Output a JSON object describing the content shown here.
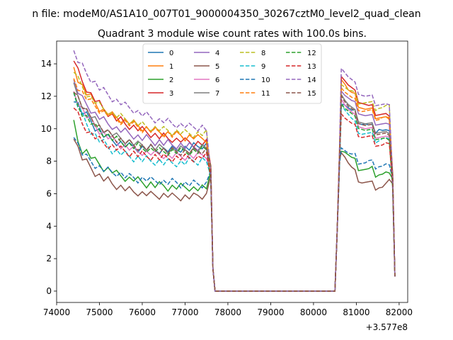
{
  "suptitle": "n file: modeM0/AS1A10_007T01_9000004350_30267cztM0_level2_quad_clean",
  "chart_data": {
    "type": "line",
    "title": "Quadrant 3 module wise count rates with 100.0s bins.",
    "xlabel": "",
    "ylabel": "",
    "x_offset_label": "+3.577e8",
    "xlim": [
      74000,
      82200
    ],
    "ylim": [
      -0.7,
      15.4
    ],
    "xticks": [
      74000,
      75000,
      76000,
      77000,
      78000,
      79000,
      80000,
      81000,
      82000
    ],
    "yticks": [
      0,
      2,
      4,
      6,
      8,
      10,
      12,
      14
    ],
    "grid": false,
    "legend_position": "top-center",
    "legend_columns": 4,
    "series": [
      {
        "name": "0",
        "color": "#1f77b4",
        "dash": "solid",
        "start": [
          11.9,
          11.5,
          11.0,
          10.8,
          10.5,
          10.1,
          9.9,
          9.6,
          9.4,
          9.3,
          9.2,
          9.1,
          9.0,
          8.9,
          8.9,
          8.8,
          8.8,
          8.8,
          8.8,
          8.7,
          8.7,
          8.7,
          8.7,
          8.7,
          8.7,
          8.8,
          8.8,
          8.8,
          8.9,
          8.9,
          9.0,
          9.0
        ],
        "end": [
          11.8,
          11.6,
          11.3,
          11.0,
          10.9,
          10.6,
          10.4,
          10.3,
          10.1,
          10.0,
          10.0,
          10.1,
          9.9,
          9.8,
          9.6
        ]
      },
      {
        "name": "1",
        "color": "#ff7f0e",
        "dash": "solid",
        "start": [
          13.8,
          13.1,
          12.6,
          12.2,
          11.9,
          11.6,
          11.3,
          11.1,
          11.0,
          10.8,
          10.7,
          10.6,
          10.5,
          10.4,
          10.3,
          10.2,
          10.1,
          10.0,
          9.9,
          9.9,
          9.8,
          9.8,
          9.7,
          9.7,
          9.6,
          9.6,
          9.5,
          9.5,
          9.5,
          9.4,
          9.4,
          9.4
        ],
        "end": [
          13.3,
          12.9,
          12.4,
          12.1,
          11.9,
          11.6,
          11.4,
          11.2,
          11.1,
          11.0,
          10.9,
          10.8,
          10.7,
          10.6,
          10.3
        ]
      },
      {
        "name": "2",
        "color": "#2ca02c",
        "dash": "solid",
        "start": [
          10.3,
          9.2,
          8.7,
          8.6,
          8.3,
          8.0,
          7.8,
          7.6,
          7.5,
          7.4,
          7.2,
          7.1,
          7.0,
          6.9,
          6.9,
          6.8,
          6.7,
          6.6,
          6.6,
          6.5,
          6.5,
          6.5,
          6.4,
          6.4,
          6.4,
          6.4,
          6.4,
          6.4,
          6.3,
          6.3,
          6.3,
          6.3
        ],
        "end": [
          8.9,
          8.7,
          8.4,
          8.1,
          7.9,
          7.7,
          7.6,
          7.5,
          7.4,
          7.4,
          7.3,
          7.3,
          7.2,
          7.2,
          7.0
        ]
      },
      {
        "name": "3",
        "color": "#d62728",
        "dash": "solid",
        "start": [
          14.3,
          13.5,
          12.9,
          12.5,
          12.1,
          11.8,
          11.5,
          11.2,
          11.0,
          10.8,
          10.6,
          10.5,
          10.3,
          10.2,
          10.1,
          10.0,
          9.9,
          9.8,
          9.7,
          9.6,
          9.5,
          9.5,
          9.4,
          9.4,
          9.3,
          9.3,
          9.2,
          9.2,
          9.1,
          9.1,
          9.1,
          9.1
        ],
        "end": [
          13.5,
          13.1,
          12.7,
          12.4,
          12.1,
          11.9,
          11.7,
          11.5,
          11.3,
          11.2,
          11.1,
          11.0,
          10.9,
          10.8,
          10.5
        ]
      },
      {
        "name": "4",
        "color": "#9467bd",
        "dash": "solid",
        "start": [
          12.9,
          12.3,
          11.8,
          11.5,
          11.2,
          10.9,
          10.7,
          10.5,
          10.3,
          10.2,
          10.0,
          9.9,
          9.8,
          9.7,
          9.6,
          9.5,
          9.4,
          9.4,
          9.3,
          9.2,
          9.2,
          9.1,
          9.1,
          9.0,
          9.0,
          9.0,
          8.9,
          8.9,
          8.9,
          8.9,
          8.9,
          8.9
        ],
        "end": [
          12.6,
          12.2,
          11.9,
          11.6,
          11.4,
          11.2,
          11.0,
          10.8,
          10.7,
          10.6,
          10.5,
          10.4,
          10.3,
          10.2,
          10.0
        ]
      },
      {
        "name": "5",
        "color": "#8c564b",
        "dash": "solid",
        "start": [
          9.6,
          8.8,
          8.2,
          7.9,
          7.6,
          7.3,
          7.1,
          6.9,
          6.8,
          6.6,
          6.5,
          6.4,
          6.3,
          6.2,
          6.1,
          6.1,
          6.0,
          6.0,
          5.9,
          5.9,
          5.9,
          5.9,
          5.9,
          5.8,
          5.8,
          5.8,
          5.8,
          5.8,
          5.8,
          5.9,
          5.9,
          5.9
        ],
        "end": [
          8.8,
          8.4,
          7.9,
          7.5,
          7.2,
          7.0,
          6.8,
          6.7,
          6.6,
          6.5,
          6.5,
          6.5,
          6.4,
          6.5,
          6.6
        ]
      },
      {
        "name": "6",
        "color": "#e377c2",
        "dash": "solid",
        "start": [
          12.3,
          11.7,
          11.2,
          10.8,
          10.5,
          10.2,
          9.9,
          9.7,
          9.5,
          9.3,
          9.2,
          9.0,
          8.9,
          8.8,
          8.7,
          8.6,
          8.6,
          8.5,
          8.5,
          8.4,
          8.4,
          8.4,
          8.3,
          8.3,
          8.3,
          8.3,
          8.3,
          8.3,
          8.3,
          8.3,
          8.4,
          8.4
        ],
        "end": [
          12.1,
          11.6,
          11.2,
          10.9,
          10.6,
          10.4,
          10.2,
          10.0,
          9.9,
          9.8,
          9.7,
          9.6,
          9.5,
          9.4,
          9.2
        ]
      },
      {
        "name": "7",
        "color": "#7f7f7f",
        "dash": "solid",
        "start": [
          12.6,
          12.0,
          11.5,
          11.1,
          10.8,
          10.5,
          10.2,
          10.0,
          9.8,
          9.7,
          9.5,
          9.4,
          9.3,
          9.2,
          9.1,
          9.0,
          9.0,
          8.9,
          8.9,
          8.8,
          8.8,
          8.8,
          8.7,
          8.7,
          8.7,
          8.7,
          8.7,
          8.7,
          8.7,
          8.7,
          8.8,
          8.8
        ],
        "end": [
          12.4,
          11.9,
          11.5,
          11.2,
          10.9,
          10.7,
          10.5,
          10.3,
          10.2,
          10.1,
          10.0,
          9.9,
          9.8,
          9.7,
          9.4
        ]
      },
      {
        "name": "8",
        "color": "#bcbd22",
        "dash": "dashed",
        "start": [
          13.6,
          13.0,
          12.6,
          12.2,
          11.9,
          11.7,
          11.4,
          11.2,
          11.1,
          10.9,
          10.8,
          10.7,
          10.6,
          10.5,
          10.4,
          10.3,
          10.2,
          10.1,
          10.1,
          10.0,
          10.0,
          9.9,
          9.9,
          9.8,
          9.8,
          9.8,
          9.7,
          9.7,
          9.7,
          9.7,
          9.7,
          9.7
        ],
        "end": [
          13.0,
          12.7,
          12.4,
          12.2,
          12.0,
          11.8,
          11.7,
          11.6,
          11.5,
          11.4,
          11.4,
          11.4,
          11.3,
          11.3,
          11.2
        ]
      },
      {
        "name": "9",
        "color": "#17becf",
        "dash": "dashed",
        "start": [
          12.1,
          11.4,
          10.8,
          10.3,
          9.9,
          9.6,
          9.3,
          9.1,
          8.9,
          8.7,
          8.6,
          8.5,
          8.4,
          8.3,
          8.2,
          8.2,
          8.1,
          8.1,
          8.0,
          8.0,
          8.0,
          7.9,
          7.9,
          7.9,
          7.9,
          7.9,
          7.9,
          8.0,
          8.0,
          8.0,
          8.1,
          8.1
        ],
        "end": [
          11.8,
          11.3,
          10.9,
          10.5,
          10.2,
          10.0,
          9.8,
          9.7,
          9.6,
          9.5,
          9.4,
          9.4,
          9.4,
          9.3,
          9.1
        ]
      },
      {
        "name": "10",
        "color": "#1f77b4",
        "dash": "dashed",
        "start": [
          9.7,
          9.0,
          8.5,
          8.2,
          8.0,
          7.8,
          7.6,
          7.5,
          7.4,
          7.3,
          7.3,
          7.2,
          7.1,
          7.0,
          7.0,
          6.9,
          6.9,
          6.9,
          6.8,
          6.8,
          6.8,
          6.7,
          6.7,
          6.7,
          6.7,
          6.6,
          6.6,
          6.6,
          6.6,
          6.6,
          6.6,
          6.6
        ],
        "end": [
          9.1,
          8.8,
          8.5,
          8.3,
          8.2,
          8.1,
          8.0,
          7.9,
          7.9,
          7.8,
          7.8,
          7.8,
          7.7,
          7.7,
          7.5
        ]
      },
      {
        "name": "11",
        "color": "#ff7f0e",
        "dash": "dashed",
        "start": [
          13.1,
          12.6,
          12.2,
          11.9,
          11.6,
          11.4,
          11.2,
          11.0,
          10.9,
          10.7,
          10.6,
          10.5,
          10.4,
          10.3,
          10.2,
          10.1,
          10.0,
          10.0,
          9.9,
          9.8,
          9.8,
          9.7,
          9.7,
          9.6,
          9.6,
          9.6,
          9.5,
          9.5,
          9.5,
          9.4,
          9.4,
          9.4
        ],
        "end": [
          12.8,
          12.4,
          12.1,
          11.8,
          11.6,
          11.4,
          11.2,
          11.1,
          11.0,
          10.9,
          10.8,
          10.7,
          10.7,
          10.6,
          10.4
        ]
      },
      {
        "name": "12",
        "color": "#2ca02c",
        "dash": "dashed",
        "start": [
          12.0,
          11.4,
          11.0,
          10.7,
          10.4,
          10.1,
          9.9,
          9.7,
          9.6,
          9.4,
          9.3,
          9.2,
          9.1,
          9.0,
          8.9,
          8.9,
          8.8,
          8.8,
          8.7,
          8.7,
          8.6,
          8.6,
          8.6,
          8.6,
          8.6,
          8.6,
          8.6,
          8.6,
          8.6,
          8.6,
          8.7,
          8.7
        ],
        "end": [
          11.8,
          11.4,
          11.1,
          10.8,
          10.5,
          10.3,
          10.1,
          9.9,
          9.8,
          9.7,
          9.6,
          9.5,
          9.4,
          9.3,
          9.0
        ]
      },
      {
        "name": "13",
        "color": "#d62728",
        "dash": "dashed",
        "start": [
          11.4,
          10.8,
          10.3,
          10.0,
          9.7,
          9.5,
          9.3,
          9.1,
          9.0,
          8.9,
          8.8,
          8.7,
          8.6,
          8.5,
          8.5,
          8.4,
          8.4,
          8.3,
          8.3,
          8.3,
          8.2,
          8.2,
          8.2,
          8.2,
          8.2,
          8.2,
          8.2,
          8.2,
          8.2,
          8.2,
          8.3,
          8.3
        ],
        "end": [
          11.2,
          10.8,
          10.5,
          10.2,
          10.0,
          9.8,
          9.6,
          9.5,
          9.4,
          9.3,
          9.2,
          9.1,
          9.0,
          9.0,
          8.8
        ]
      },
      {
        "name": "14",
        "color": "#9467bd",
        "dash": "dashed",
        "start": [
          14.7,
          14.2,
          13.8,
          13.4,
          13.1,
          12.8,
          12.5,
          12.3,
          12.1,
          11.9,
          11.7,
          11.6,
          11.4,
          11.3,
          11.2,
          11.0,
          10.9,
          10.8,
          10.7,
          10.6,
          10.5,
          10.5,
          10.4,
          10.3,
          10.3,
          10.2,
          10.2,
          10.1,
          10.1,
          10.1,
          10.1,
          10.0
        ],
        "end": [
          14.0,
          13.6,
          13.2,
          12.9,
          12.6,
          12.4,
          12.2,
          12.0,
          11.9,
          11.8,
          11.7,
          11.6,
          11.5,
          11.4,
          11.2
        ]
      },
      {
        "name": "15",
        "color": "#8c564b",
        "dash": "dashed",
        "start": [
          12.5,
          11.9,
          11.4,
          11.0,
          10.7,
          10.4,
          10.1,
          9.9,
          9.7,
          9.6,
          9.4,
          9.3,
          9.2,
          9.1,
          9.0,
          8.9,
          8.9,
          8.8,
          8.8,
          8.7,
          8.7,
          8.7,
          8.6,
          8.6,
          8.6,
          8.6,
          8.6,
          8.6,
          8.6,
          8.6,
          8.7,
          8.7
        ],
        "end": [
          12.3,
          11.8,
          11.4,
          11.1,
          10.8,
          10.6,
          10.4,
          10.2,
          10.1,
          10.0,
          9.9,
          9.8,
          9.7,
          9.6,
          9.3
        ]
      }
    ]
  }
}
